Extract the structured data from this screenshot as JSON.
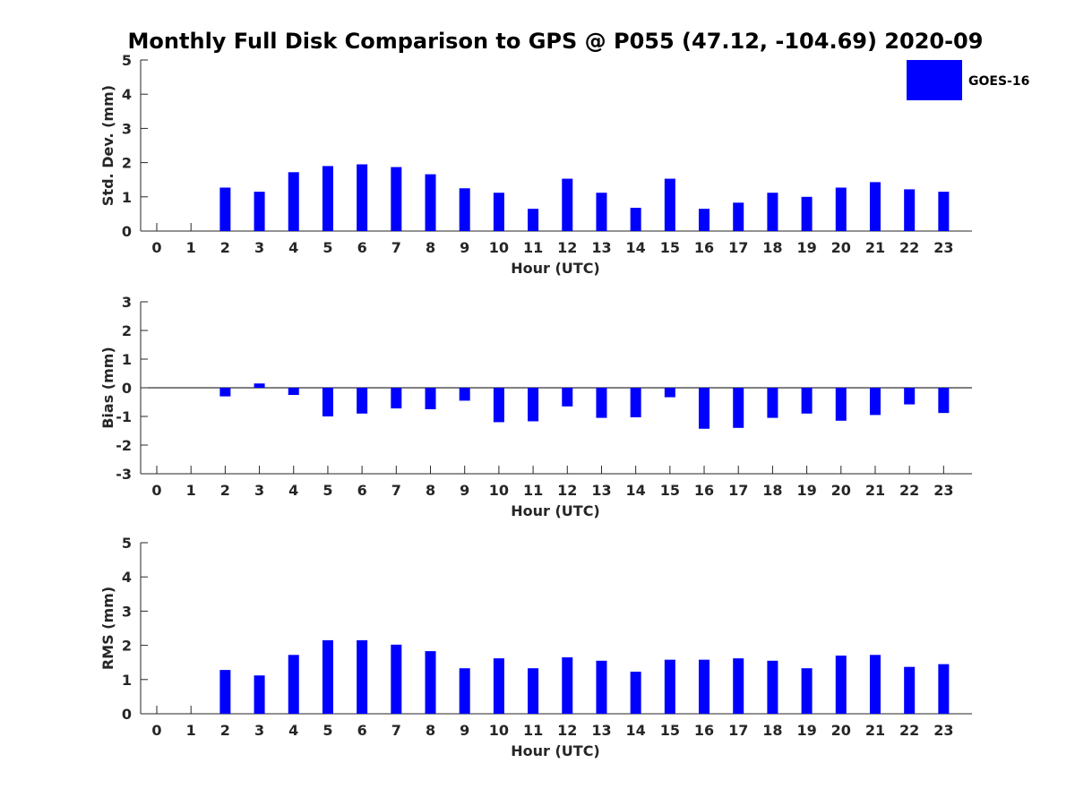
{
  "title": "Monthly Full Disk Comparison to GPS @ P055 (47.12, -104.69) 2020-09",
  "legend": {
    "label": "GOES-16",
    "placement": "top-right"
  },
  "colors": {
    "bar": "#0000ff",
    "axis": "#262626"
  },
  "chart_data": [
    {
      "id": "std",
      "type": "bar",
      "categories": [
        "0",
        "1",
        "2",
        "3",
        "4",
        "5",
        "6",
        "7",
        "8",
        "9",
        "10",
        "11",
        "12",
        "13",
        "14",
        "15",
        "16",
        "17",
        "18",
        "19",
        "20",
        "21",
        "22",
        "23"
      ],
      "series": [
        {
          "name": "GOES-16",
          "values": [
            null,
            null,
            1.27,
            1.15,
            1.72,
            1.9,
            1.95,
            1.87,
            1.66,
            1.25,
            1.12,
            0.65,
            1.53,
            1.12,
            0.68,
            1.53,
            0.65,
            0.83,
            1.12,
            1.0,
            1.27,
            1.43,
            1.22,
            1.15
          ]
        }
      ],
      "xlabel": "Hour (UTC)",
      "ylabel": "Std. Dev. (mm)",
      "ylim": [
        0,
        5
      ],
      "yticks": [
        "0",
        "1",
        "2",
        "3",
        "4",
        "5"
      ]
    },
    {
      "id": "bias",
      "type": "bar",
      "categories": [
        "0",
        "1",
        "2",
        "3",
        "4",
        "5",
        "6",
        "7",
        "8",
        "9",
        "10",
        "11",
        "12",
        "13",
        "14",
        "15",
        "16",
        "17",
        "18",
        "19",
        "20",
        "21",
        "22",
        "23"
      ],
      "series": [
        {
          "name": "GOES-16",
          "values": [
            null,
            null,
            -0.3,
            0.15,
            -0.25,
            -1.0,
            -0.9,
            -0.72,
            -0.75,
            -0.45,
            -1.2,
            -1.17,
            -0.65,
            -1.05,
            -1.03,
            -0.33,
            -1.43,
            -1.4,
            -1.05,
            -0.9,
            -1.15,
            -0.95,
            -0.58,
            -0.88
          ]
        }
      ],
      "xlabel": "Hour (UTC)",
      "ylabel": "Bias (mm)",
      "ylim": [
        -3,
        3
      ],
      "yticks": [
        "3",
        "2",
        "1",
        "0",
        "-1",
        "-2",
        "-3"
      ]
    },
    {
      "id": "rms",
      "type": "bar",
      "categories": [
        "0",
        "1",
        "2",
        "3",
        "4",
        "5",
        "6",
        "7",
        "8",
        "9",
        "10",
        "11",
        "12",
        "13",
        "14",
        "15",
        "16",
        "17",
        "18",
        "19",
        "20",
        "21",
        "22",
        "23"
      ],
      "series": [
        {
          "name": "GOES-16",
          "values": [
            null,
            null,
            1.28,
            1.12,
            1.72,
            2.15,
            2.15,
            2.02,
            1.83,
            1.33,
            1.62,
            1.33,
            1.65,
            1.55,
            1.23,
            1.58,
            1.58,
            1.62,
            1.55,
            1.33,
            1.7,
            1.72,
            1.37,
            1.45
          ]
        }
      ],
      "xlabel": "Hour (UTC)",
      "ylabel": "RMS (mm)",
      "ylim": [
        0,
        5
      ],
      "yticks": [
        "0",
        "1",
        "2",
        "3",
        "4",
        "5"
      ]
    }
  ]
}
